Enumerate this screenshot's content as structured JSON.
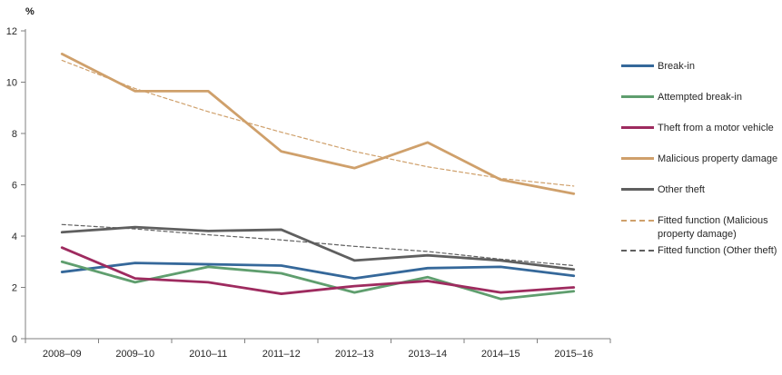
{
  "chart_data": {
    "type": "line",
    "title": "",
    "ylabel": "%",
    "xlabel": "",
    "categories": [
      "2008–09",
      "2009–10",
      "2010–11",
      "2011–12",
      "2012–13",
      "2013–14",
      "2014–15",
      "2015–16"
    ],
    "ylim": [
      0,
      12
    ],
    "yticks": [
      0,
      2,
      4,
      6,
      8,
      10,
      12
    ],
    "grid": false,
    "legend_position": "right",
    "axis_color": "#7f7f7f",
    "series": [
      {
        "name": "Break-in",
        "color": "#35689A",
        "style": "solid",
        "values": [
          2.6,
          2.95,
          2.9,
          2.85,
          2.35,
          2.75,
          2.8,
          2.45
        ]
      },
      {
        "name": "Attempted break-in",
        "color": "#5F9E6E",
        "style": "solid",
        "values": [
          3.0,
          2.2,
          2.8,
          2.55,
          1.8,
          2.4,
          1.55,
          1.85
        ]
      },
      {
        "name": "Theft from a motor vehicle",
        "color": "#9E2B5F",
        "style": "solid",
        "values": [
          3.55,
          2.35,
          2.2,
          1.75,
          2.05,
          2.25,
          1.8,
          2.0
        ]
      },
      {
        "name": "Malicious property damage",
        "color": "#CFA06B",
        "style": "solid",
        "values": [
          11.1,
          9.65,
          9.65,
          7.3,
          6.65,
          7.65,
          6.2,
          5.65
        ]
      },
      {
        "name": "Other theft",
        "color": "#5F5F5F",
        "style": "solid",
        "values": [
          4.15,
          4.35,
          4.2,
          4.25,
          3.05,
          3.25,
          3.05,
          2.7
        ]
      },
      {
        "name": "Fitted function (Malicious property damage)",
        "color": "#CFA06B",
        "style": "dashed",
        "values": [
          10.85,
          9.75,
          8.85,
          8.05,
          7.3,
          6.7,
          6.25,
          5.95
        ]
      },
      {
        "name": "Fitted function (Other theft)",
        "color": "#5F5F5F",
        "style": "dashed",
        "values": [
          4.45,
          4.28,
          4.05,
          3.85,
          3.6,
          3.4,
          3.1,
          2.85
        ]
      }
    ]
  }
}
